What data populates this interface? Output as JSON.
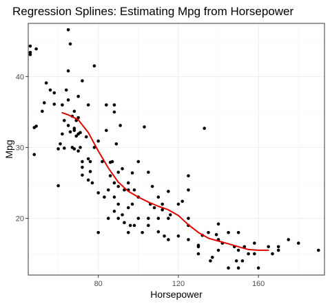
{
  "chart_data": {
    "type": "scatter",
    "title": "Regression Splines: Estimating Mpg from Horsepower",
    "xlabel": "Horsepower",
    "ylabel": "Mpg",
    "xlim": [
      45,
      193
    ],
    "ylim": [
      12,
      47.5
    ],
    "x_ticks_major": [
      80,
      120,
      160
    ],
    "x_ticks_minor": [
      60,
      100,
      140,
      180
    ],
    "y_ticks_major": [
      20,
      30,
      40
    ],
    "y_ticks_minor": [
      15,
      25,
      35,
      45
    ],
    "x_tick_labels": [
      "80",
      "120",
      "160"
    ],
    "y_tick_labels": [
      "20",
      "30",
      "40"
    ],
    "grid": true,
    "colors": {
      "points": "#000000",
      "spline": "#e00000",
      "grid": "#ebebeb",
      "border": "#333333"
    },
    "series": [
      {
        "type": "scatter",
        "points": [
          [
            46,
            44.3
          ],
          [
            46,
            43.4
          ],
          [
            46,
            43.1
          ],
          [
            49,
            43.9
          ],
          [
            48,
            29.0
          ],
          [
            48,
            32.8
          ],
          [
            49,
            33.0
          ],
          [
            52,
            35.1
          ],
          [
            53,
            36.3
          ],
          [
            54,
            39.1
          ],
          [
            56,
            38.1
          ],
          [
            58,
            37.7
          ],
          [
            58,
            36.1
          ],
          [
            60,
            29.8
          ],
          [
            60,
            24.6
          ],
          [
            61,
            30.5
          ],
          [
            62,
            31.9
          ],
          [
            62,
            36.0
          ],
          [
            63,
            29.9
          ],
          [
            63,
            33.8
          ],
          [
            64,
            38.1
          ],
          [
            65,
            40.8
          ],
          [
            65,
            46.6
          ],
          [
            65,
            36.7
          ],
          [
            66,
            44.6
          ],
          [
            65,
            33.1
          ],
          [
            66,
            32.2
          ],
          [
            67,
            34.4
          ],
          [
            67,
            30.0
          ],
          [
            68,
            29.8
          ],
          [
            68,
            32.4
          ],
          [
            68,
            35.1
          ],
          [
            68,
            32.7
          ],
          [
            69,
            33.8
          ],
          [
            69,
            31.6
          ],
          [
            70,
            37.2
          ],
          [
            70,
            34.2
          ],
          [
            70,
            31.9
          ],
          [
            70,
            29.5
          ],
          [
            71,
            32.1
          ],
          [
            71,
            30.0
          ],
          [
            72,
            28.0
          ],
          [
            72,
            26.1
          ],
          [
            72,
            39.4
          ],
          [
            72,
            27.2
          ],
          [
            74,
            31.5
          ],
          [
            75,
            28.4
          ],
          [
            75,
            36.0
          ],
          [
            75,
            25.4
          ],
          [
            76,
            26.6
          ],
          [
            78,
            41.5
          ],
          [
            76,
            28.0
          ],
          [
            78,
            30.0
          ],
          [
            77,
            25.0
          ],
          [
            80,
            30.9
          ],
          [
            80,
            18.0
          ],
          [
            80,
            23.6
          ],
          [
            82,
            28.0
          ],
          [
            83,
            23.0
          ],
          [
            84,
            32.4
          ],
          [
            84,
            36.0
          ],
          [
            85,
            20.0
          ],
          [
            85,
            24.0
          ],
          [
            86,
            26.0
          ],
          [
            86,
            27.9
          ],
          [
            87,
            28.0
          ],
          [
            88,
            36.0
          ],
          [
            88,
            35.0
          ],
          [
            88,
            25.0
          ],
          [
            88,
            23.0
          ],
          [
            88,
            21.0
          ],
          [
            89,
            30.5
          ],
          [
            90,
            26.5
          ],
          [
            90,
            24.5
          ],
          [
            90,
            22.0
          ],
          [
            90,
            20.0
          ],
          [
            91,
            33.1
          ],
          [
            92,
            27.0
          ],
          [
            92,
            20.5
          ],
          [
            93,
            19.4
          ],
          [
            93,
            24.0
          ],
          [
            95,
            21.5
          ],
          [
            95,
            25.0
          ],
          [
            95,
            24.0
          ],
          [
            95,
            18.0
          ],
          [
            96,
            19.0
          ],
          [
            97,
            22.0
          ],
          [
            97,
            26.4
          ],
          [
            98,
            24.0
          ],
          [
            98,
            19.0
          ],
          [
            100,
            23.0
          ],
          [
            100,
            28.0
          ],
          [
            100,
            20.0
          ],
          [
            103,
            32.9
          ],
          [
            102,
            18.0
          ],
          [
            105,
            20.0
          ],
          [
            105,
            19.0
          ],
          [
            105,
            26.5
          ],
          [
            106,
            22.0
          ],
          [
            107,
            24.5
          ],
          [
            108,
            21.5
          ],
          [
            110,
            20.0
          ],
          [
            110,
            23.0
          ],
          [
            110,
            18.1
          ],
          [
            112,
            22.0
          ],
          [
            112,
            21.2
          ],
          [
            113,
            17.5
          ],
          [
            115,
            17.0
          ],
          [
            115,
            20.0
          ],
          [
            115,
            23.8
          ],
          [
            116,
            20.5
          ],
          [
            120,
            22.0
          ],
          [
            120,
            17.5
          ],
          [
            122,
            22.4
          ],
          [
            125,
            20.0
          ],
          [
            125,
            26.0
          ],
          [
            125,
            24.0
          ],
          [
            125,
            19.0
          ],
          [
            125,
            17.0
          ],
          [
            130,
            16.0
          ],
          [
            130,
            15.0
          ],
          [
            130,
            16.2
          ],
          [
            132,
            17.6
          ],
          [
            133,
            32.7
          ],
          [
            136,
            14.0
          ],
          [
            135,
            18.0
          ],
          [
            137,
            14.5
          ],
          [
            139,
            17.7
          ],
          [
            140,
            15.5
          ],
          [
            140,
            19.2
          ],
          [
            140,
            17.0
          ],
          [
            142,
            16.5
          ],
          [
            145,
            18.0
          ],
          [
            145,
            13.0
          ],
          [
            148,
            16.0
          ],
          [
            149,
            14.0
          ],
          [
            150,
            13.0
          ],
          [
            150,
            15.5
          ],
          [
            150,
            18.0
          ],
          [
            152,
            14.0
          ],
          [
            153,
            16.0
          ],
          [
            155,
            15.0
          ],
          [
            158,
            15.0
          ],
          [
            158,
            16.5
          ],
          [
            160,
            13.0
          ],
          [
            165,
            16.0
          ],
          [
            167,
            15.0
          ],
          [
            170,
            15.5
          ],
          [
            170,
            16.0
          ],
          [
            175,
            17.0
          ],
          [
            180,
            16.5
          ],
          [
            190,
            15.5
          ]
        ]
      },
      {
        "type": "line",
        "points": [
          [
            62,
            34.9
          ],
          [
            65,
            34.6
          ],
          [
            70,
            33.9
          ],
          [
            75,
            32.1
          ],
          [
            80,
            29.5
          ],
          [
            85,
            27.1
          ],
          [
            90,
            25.1
          ],
          [
            95,
            23.8
          ],
          [
            100,
            23.0
          ],
          [
            105,
            22.3
          ],
          [
            110,
            21.7
          ],
          [
            115,
            21.2
          ],
          [
            120,
            20.4
          ],
          [
            125,
            19.1
          ],
          [
            130,
            18.0
          ],
          [
            135,
            17.2
          ],
          [
            140,
            16.8
          ],
          [
            145,
            16.4
          ],
          [
            150,
            16.0
          ],
          [
            155,
            15.6
          ],
          [
            160,
            15.5
          ],
          [
            165,
            15.5
          ]
        ]
      }
    ]
  }
}
